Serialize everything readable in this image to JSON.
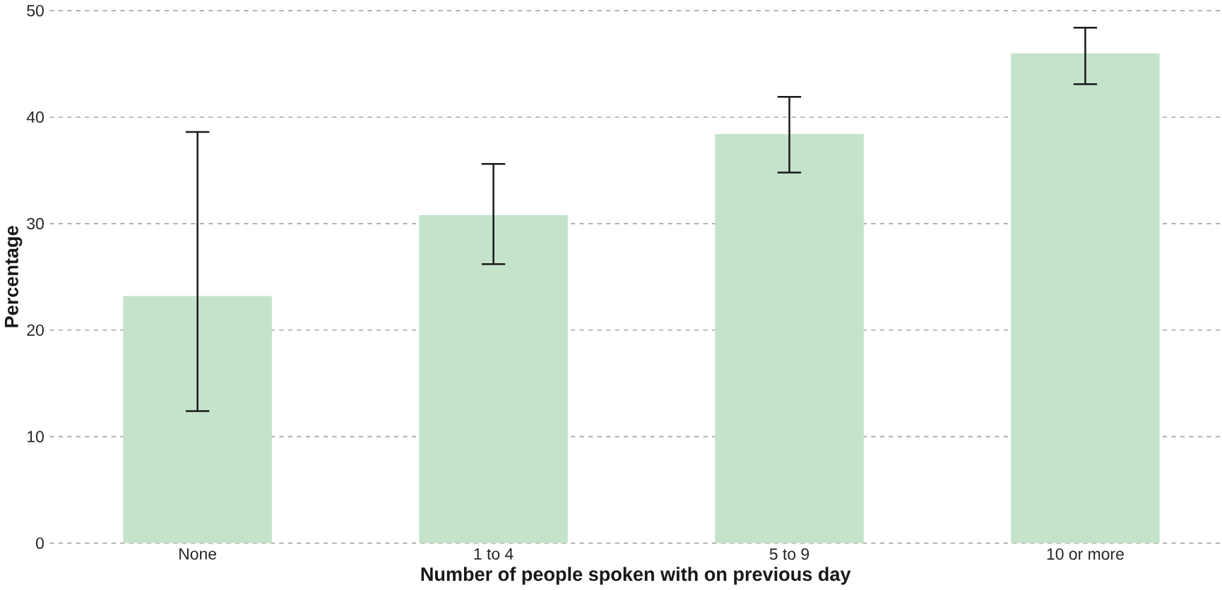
{
  "chart_data": {
    "type": "bar",
    "xlabel": "Number of people spoken with on previous day",
    "ylabel": "Percentage",
    "categories": [
      "None",
      "1 to 4",
      "5 to 9",
      "10 or more"
    ],
    "values": [
      23.2,
      30.8,
      38.4,
      46.0
    ],
    "errors": [
      [
        12.4,
        38.6
      ],
      [
        26.2,
        35.6
      ],
      [
        34.8,
        41.9
      ],
      [
        43.1,
        48.4
      ]
    ],
    "color": "#c5e3cb",
    "ylim": [
      0,
      50
    ],
    "yticks": [
      0,
      10,
      20,
      30,
      40,
      50
    ],
    "grid": "y"
  }
}
